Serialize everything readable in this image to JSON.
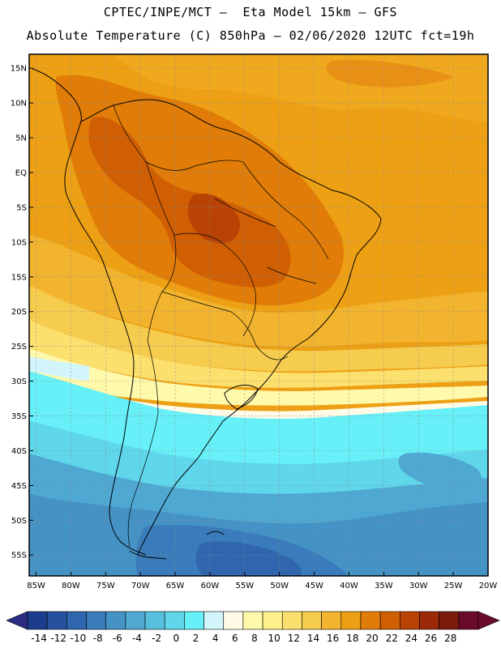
{
  "header": {
    "line1": "CPTEC/INPE/MCT –  Eta Model 15km – GFS",
    "line2": "Absolute Temperature (C) 850hPa – 02/06/2020 12UTC fct=19h"
  },
  "map": {
    "region": "South America",
    "lon_range": [
      -86,
      -20
    ],
    "lat_range": [
      -58,
      17
    ],
    "lat_ticks": [
      {
        "value": 15,
        "label": "15N"
      },
      {
        "value": 10,
        "label": "10N"
      },
      {
        "value": 5,
        "label": "5N"
      },
      {
        "value": 0,
        "label": "EQ"
      },
      {
        "value": -5,
        "label": "5S"
      },
      {
        "value": -10,
        "label": "10S"
      },
      {
        "value": -15,
        "label": "15S"
      },
      {
        "value": -20,
        "label": "20S"
      },
      {
        "value": -25,
        "label": "25S"
      },
      {
        "value": -30,
        "label": "30S"
      },
      {
        "value": -35,
        "label": "35S"
      },
      {
        "value": -40,
        "label": "40S"
      },
      {
        "value": -45,
        "label": "45S"
      },
      {
        "value": -50,
        "label": "50S"
      },
      {
        "value": -55,
        "label": "55S"
      }
    ],
    "lon_ticks": [
      {
        "value": -85,
        "label": "85W"
      },
      {
        "value": -80,
        "label": "80W"
      },
      {
        "value": -75,
        "label": "75W"
      },
      {
        "value": -70,
        "label": "70W"
      },
      {
        "value": -65,
        "label": "65W"
      },
      {
        "value": -60,
        "label": "60W"
      },
      {
        "value": -55,
        "label": "55W"
      },
      {
        "value": -50,
        "label": "50W"
      },
      {
        "value": -45,
        "label": "45W"
      },
      {
        "value": -40,
        "label": "40W"
      },
      {
        "value": -35,
        "label": "35W"
      },
      {
        "value": -30,
        "label": "30W"
      },
      {
        "value": -25,
        "label": "25W"
      },
      {
        "value": -20,
        "label": "20W"
      }
    ],
    "gridlines": true
  },
  "colorbar": {
    "labels": [
      "-14",
      "-12",
      "-10",
      "-8",
      "-6",
      "-4",
      "-2",
      "0",
      "2",
      "4",
      "6",
      "8",
      "10",
      "12",
      "14",
      "16",
      "18",
      "20",
      "22",
      "24",
      "26",
      "28"
    ],
    "colors": [
      "#1c3d8e",
      "#25519e",
      "#2f66ad",
      "#3a7cbb",
      "#4592c5",
      "#4ea8d2",
      "#57c0de",
      "#5fd6ea",
      "#67f0f8",
      "#d2f5fb",
      "#fffbe6",
      "#fff9ab",
      "#fff08c",
      "#fbe06e",
      "#f6cc4e",
      "#f2b42e",
      "#eda014",
      "#e07c07",
      "#d05f04",
      "#b84304",
      "#9a2a08",
      "#7a1b0c",
      "#6a0b2a"
    ],
    "under_color": "#2b2e80",
    "over_color": "#6a0b2a"
  }
}
